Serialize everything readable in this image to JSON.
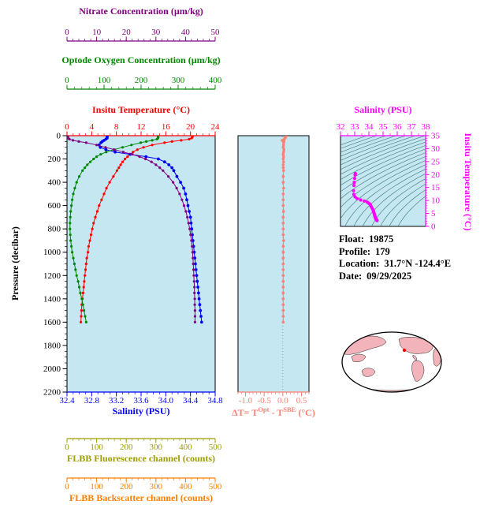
{
  "colors": {
    "plot_bg": "#c4e7f2",
    "frame": "#000000",
    "contour": "#2e6b6b",
    "map_land": "#f2b4ba",
    "map_ocean": "#ffffff",
    "marker": "#ff0000"
  },
  "axes": {
    "nitrate": {
      "title": "Nitrate Concentration (µm/kg)",
      "color": "#800080",
      "range": [
        0,
        50
      ],
      "minor_step": 2,
      "tick_values": [
        0,
        10,
        20,
        30,
        40,
        50
      ],
      "tick_labels": [
        "0",
        "10",
        "20",
        "30",
        "40",
        "50"
      ]
    },
    "oxygen": {
      "title": "Optode Oxygen Concentration (µm/kg)",
      "color": "#008800",
      "range": [
        0,
        400
      ],
      "minor_step": 20,
      "tick_values": [
        0,
        100,
        200,
        300,
        400
      ],
      "tick_labels": [
        "0",
        "100",
        "200",
        "300",
        "400"
      ]
    },
    "temperature": {
      "title": "Insitu Temperature (°C)",
      "color": "#ff0000",
      "range": [
        0,
        24
      ],
      "minor_step": 1,
      "tick_values": [
        0,
        4,
        8,
        12,
        16,
        20,
        24
      ],
      "tick_labels": [
        "0",
        "4",
        "8",
        "12",
        "16",
        "20",
        "24"
      ]
    },
    "pressure": {
      "title": "Pressure (decibar)",
      "color": "#000000",
      "range": [
        0,
        2200
      ],
      "minor_step": 50,
      "tick_values": [
        0,
        200,
        400,
        600,
        800,
        1000,
        1200,
        1400,
        1600,
        1800,
        2000,
        2200
      ],
      "tick_labels": [
        "0",
        "200",
        "400",
        "600",
        "800",
        "1000",
        "1200",
        "1400",
        "1600",
        "1800",
        "2000",
        "2200"
      ]
    },
    "salinity": {
      "title": "Salinity (PSU)",
      "color": "#0000ff",
      "range": [
        32.4,
        34.8
      ],
      "minor_step": 0.1,
      "tick_values": [
        32.4,
        32.8,
        33.2,
        33.6,
        34.0,
        34.4,
        34.8
      ],
      "tick_labels": [
        "32.4",
        "32.8",
        "33.2",
        "33.6",
        "34.0",
        "34.4",
        "34.8"
      ]
    },
    "delta_t": {
      "title_parts": [
        "ΔT= T",
        "Opt",
        " - T",
        "SBE",
        " (°C)"
      ],
      "color": "#fa8072",
      "range": [
        -1.2,
        0.7
      ],
      "minor_step": 0.1,
      "tick_values": [
        -1.0,
        -0.5,
        0.0,
        0.5
      ],
      "tick_labels": [
        "-1.0",
        "-0.5",
        "0.0",
        "0.5"
      ]
    },
    "ts_salinity": {
      "title": "Salinity (PSU)",
      "color": "#ff00ff",
      "range": [
        32,
        38
      ],
      "minor_step": 0.5,
      "tick_values": [
        32,
        33,
        34,
        35,
        36,
        37,
        38
      ],
      "tick_labels": [
        "32",
        "33",
        "34",
        "35",
        "36",
        "37",
        "38"
      ]
    },
    "ts_temperature": {
      "title": "Insitu Temperature (°C)",
      "color": "#ff00ff",
      "range": [
        0,
        35
      ],
      "minor_step": 1,
      "tick_values": [
        0,
        5,
        10,
        15,
        20,
        25,
        30,
        35
      ],
      "tick_labels": [
        "0",
        "5",
        "10",
        "15",
        "20",
        "25",
        "30",
        "35"
      ]
    },
    "fluorescence": {
      "title": "FLBB Fluorescence channel (counts)",
      "color": "#9d9d00",
      "range": [
        0,
        500
      ],
      "minor_step": 20,
      "tick_values": [
        0,
        100,
        200,
        300,
        400,
        500
      ],
      "tick_labels": [
        "0",
        "100",
        "200",
        "300",
        "400",
        "500"
      ]
    },
    "backscatter": {
      "title": "FLBB Backscatter channel (counts)",
      "color": "#ff7f00",
      "range": [
        0,
        500
      ],
      "minor_step": 20,
      "tick_values": [
        0,
        100,
        200,
        300,
        400,
        500
      ],
      "tick_labels": [
        "0",
        "100",
        "200",
        "300",
        "400",
        "500"
      ]
    }
  },
  "chart_data": {
    "type": "line",
    "axis_labels": {
      "x_top": [
        "Nitrate Concentration (µm/kg)",
        "Optode Oxygen Concentration (µm/kg)",
        "Insitu Temperature (°C)"
      ],
      "x_bottom": [
        "Salinity (PSU)",
        "FLBB Fluorescence channel (counts)",
        "FLBB Backscatter channel (counts)"
      ],
      "y_left": "Pressure (decibar)",
      "dt_panel_x": "ΔT= T^Opt - T^SBE (°C)",
      "ts_panel_x": "Salinity (PSU)",
      "ts_panel_y": "Insitu Temperature (°C)"
    },
    "pressure_db": [
      0,
      10,
      20,
      30,
      40,
      50,
      60,
      80,
      100,
      120,
      140,
      160,
      180,
      200,
      225,
      250,
      275,
      300,
      350,
      400,
      450,
      500,
      550,
      600,
      650,
      700,
      750,
      800,
      850,
      900,
      950,
      1000,
      1050,
      1100,
      1150,
      1200,
      1250,
      1300,
      1350,
      1400,
      1450,
      1500,
      1550,
      1600
    ],
    "series": [
      {
        "name": "Insitu Temperature",
        "units": "°C",
        "axis": "temperature",
        "values": [
          20.4,
          20.3,
          20.2,
          19.8,
          18.5,
          17.0,
          15.8,
          13.8,
          12.4,
          11.4,
          10.7,
          10.2,
          9.8,
          9.4,
          9.0,
          8.7,
          8.4,
          8.1,
          7.5,
          6.9,
          6.4,
          6.0,
          5.6,
          5.2,
          4.9,
          4.6,
          4.3,
          4.1,
          3.9,
          3.7,
          3.5,
          3.4,
          3.2,
          3.1,
          3.0,
          2.9,
          2.8,
          2.7,
          2.6,
          2.5,
          2.4,
          2.35,
          2.3,
          2.25
        ]
      },
      {
        "name": "Salinity",
        "units": "PSU",
        "axis": "salinity",
        "values": [
          33.05,
          33.05,
          33.05,
          33.03,
          33.0,
          32.97,
          32.95,
          32.92,
          32.94,
          33.03,
          33.18,
          33.42,
          33.68,
          33.88,
          33.98,
          34.05,
          34.1,
          34.13,
          34.18,
          34.24,
          34.29,
          34.32,
          34.34,
          34.36,
          34.38,
          34.4,
          34.41,
          34.42,
          34.43,
          34.44,
          34.45,
          34.46,
          34.47,
          34.48,
          34.49,
          34.5,
          34.51,
          34.52,
          34.53,
          34.54,
          34.55,
          34.56,
          34.57,
          34.58
        ]
      },
      {
        "name": "Optode Oxygen Concentration",
        "units": "µm/kg",
        "axis": "oxygen",
        "values": [
          245,
          246,
          246,
          243,
          230,
          214,
          199,
          174,
          150,
          126,
          106,
          91,
          80,
          72,
          63,
          55,
          48,
          42,
          33,
          26,
          21,
          17,
          14,
          12,
          10,
          9,
          8,
          8,
          9,
          10,
          12,
          14,
          17,
          20,
          23,
          26,
          30,
          33,
          36,
          40,
          43,
          46,
          49,
          52
        ]
      },
      {
        "name": "Nitrate Concentration",
        "units": "µm/kg",
        "axis": "nitrate",
        "values": [
          0.3,
          0.3,
          0.4,
          0.8,
          2.0,
          4.0,
          6.5,
          10.0,
          13.0,
          16.0,
          19.0,
          22.0,
          24.5,
          26.5,
          28.5,
          30.0,
          31.3,
          32.4,
          34.2,
          35.8,
          37.0,
          38.0,
          38.8,
          39.5,
          40.1,
          40.6,
          41.0,
          41.4,
          41.7,
          42.0,
          42.2,
          42.4,
          42.5,
          42.6,
          42.7,
          42.8,
          42.9,
          43.0,
          43.0,
          43.1,
          43.1,
          43.2,
          43.2,
          43.2
        ]
      },
      {
        "name": "ΔT = T_Opt - T_SBE",
        "units": "°C",
        "axis": "delta_t",
        "panel": "dt",
        "values": [
          0.1,
          0.08,
          0.06,
          0.04,
          -0.02,
          0.03,
          0.02,
          0.02,
          0.01,
          0.03,
          0.02,
          0.01,
          0.02,
          0.01,
          0.02,
          0.01,
          0.01,
          0.02,
          0.01,
          0.01,
          0.02,
          0.01,
          0.01,
          0.01,
          0.02,
          0.01,
          0.01,
          0.01,
          0.01,
          0.02,
          0.01,
          0.01,
          0.01,
          0.01,
          0.01,
          0.01,
          0.01,
          0.01,
          0.01,
          0.01,
          0.01,
          0.01,
          0.01,
          0.01
        ]
      }
    ],
    "ts_diagram": {
      "x": "salinity",
      "y": "temperature",
      "point_color": "#ff00ff",
      "contour_levels": [
        19,
        19.5,
        20,
        20.5,
        21,
        21.5,
        22,
        22.5,
        23,
        23.5,
        24,
        24.5,
        25,
        25.5,
        26,
        26.5,
        27,
        27.5,
        28,
        28.5,
        29
      ]
    }
  },
  "info": {
    "float_label": "Float:",
    "float_value": "19875",
    "profile_label": "Profile:",
    "profile_value": "179",
    "location_label": "Location:",
    "location_value": "31.7°N  -124.4°E",
    "date_label": "Date:",
    "date_value": "09/29/2025"
  }
}
